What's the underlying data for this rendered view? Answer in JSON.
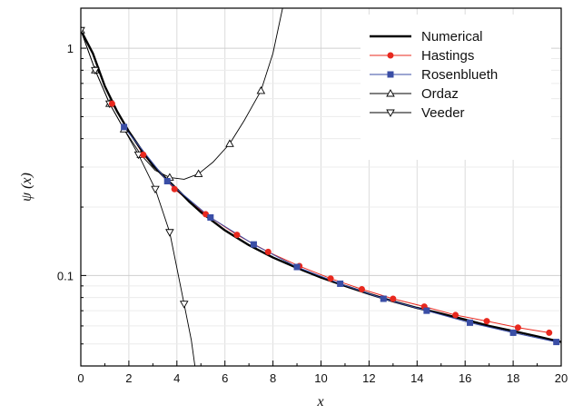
{
  "chart_data": {
    "type": "line",
    "xlabel": "x",
    "ylabel": "ψ (x)",
    "xlim": [
      0,
      20
    ],
    "ylim": [
      0.04,
      1.5
    ],
    "yscale": "log",
    "grid": true,
    "legend_position": "top-right",
    "x_ticks": [
      "0",
      "2",
      "4",
      "6",
      "8",
      "10",
      "12",
      "14",
      "16",
      "18",
      "20"
    ],
    "x_tick_values": [
      0,
      2,
      4,
      6,
      8,
      10,
      12,
      14,
      16,
      18,
      20
    ],
    "y_ticks": [
      "0.1",
      "1"
    ],
    "y_tick_values": [
      0.1,
      1
    ],
    "series": [
      {
        "name": "Numerical",
        "color": "#000000",
        "marker": "none",
        "x": [
          0,
          0.5,
          1,
          1.5,
          2,
          2.5,
          3,
          3.5,
          4,
          4.5,
          5,
          6,
          7,
          8,
          9,
          10,
          11,
          12,
          13,
          14,
          15,
          16,
          17,
          18,
          19,
          20
        ],
        "y": [
          1.2,
          0.95,
          0.68,
          0.53,
          0.43,
          0.36,
          0.305,
          0.27,
          0.24,
          0.212,
          0.19,
          0.158,
          0.136,
          0.12,
          0.108,
          0.098,
          0.09,
          0.083,
          0.077,
          0.072,
          0.068,
          0.064,
          0.06,
          0.057,
          0.054,
          0.051
        ]
      },
      {
        "name": "Hastings",
        "color": "#e8281e",
        "marker": "circle",
        "x": [
          1.3,
          2.6,
          3.9,
          5.2,
          6.5,
          7.8,
          9.1,
          10.4,
          11.7,
          13.0,
          14.3,
          15.6,
          16.9,
          18.2,
          19.5
        ],
        "y": [
          0.57,
          0.34,
          0.24,
          0.186,
          0.151,
          0.127,
          0.11,
          0.097,
          0.087,
          0.079,
          0.073,
          0.067,
          0.063,
          0.059,
          0.056
        ]
      },
      {
        "name": "Rosenblueth",
        "color": "#3a4ea6",
        "marker": "square",
        "x": [
          1.8,
          3.6,
          5.4,
          7.2,
          9.0,
          10.8,
          12.6,
          14.4,
          16.2,
          18.0,
          19.8
        ],
        "y": [
          0.45,
          0.26,
          0.18,
          0.137,
          0.109,
          0.092,
          0.079,
          0.07,
          0.062,
          0.056,
          0.051
        ]
      },
      {
        "name": "Ordaz",
        "color": "#000000",
        "marker": "triangle-up",
        "x": [
          0,
          0.6,
          1.2,
          1.8,
          2.5,
          3.7,
          4.9,
          6.2,
          7.5
        ],
        "y": [
          1.2,
          0.8,
          0.57,
          0.44,
          0.34,
          0.27,
          0.28,
          0.38,
          0.65
        ],
        "curve_x": [
          0,
          0.6,
          1.2,
          1.8,
          2.5,
          3.1,
          3.7,
          4.3,
          4.9,
          5.5,
          6.2,
          6.8,
          7.5,
          8.0,
          8.4
        ],
        "curve_y": [
          1.2,
          0.8,
          0.57,
          0.44,
          0.34,
          0.29,
          0.27,
          0.265,
          0.28,
          0.315,
          0.38,
          0.48,
          0.65,
          0.95,
          1.5
        ]
      },
      {
        "name": "Veeder",
        "color": "#000000",
        "marker": "triangle-down",
        "x": [
          0,
          0.6,
          1.2,
          2.4,
          3.1,
          3.7,
          4.3
        ],
        "y": [
          1.2,
          0.8,
          0.57,
          0.34,
          0.24,
          0.155,
          0.075
        ],
        "curve_x": [
          0,
          0.6,
          1.2,
          1.8,
          2.4,
          3.1,
          3.7,
          4.3,
          4.6,
          4.75
        ],
        "curve_y": [
          1.2,
          0.8,
          0.57,
          0.44,
          0.34,
          0.24,
          0.155,
          0.075,
          0.052,
          0.04
        ]
      }
    ]
  }
}
